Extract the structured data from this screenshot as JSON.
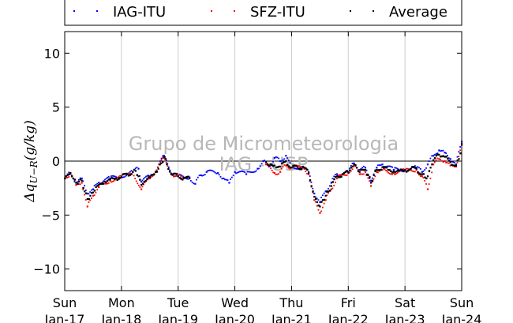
{
  "chart_data": {
    "type": "scatter",
    "watermark": [
      "Grupo de Micrometeorologia",
      "IAG - USP"
    ],
    "ylabel": "Δq_{U−R}(g/kg)",
    "ylabel_parts": {
      "delta": "Δ",
      "q": "q",
      "sub": "U−R",
      "unit": "(g/kg)"
    },
    "ylim": [
      -12,
      12
    ],
    "yticks": [
      10,
      5,
      0,
      -5,
      -10
    ],
    "ytick_labels": [
      "10",
      "5",
      "0",
      "−5",
      "−10"
    ],
    "xlim": [
      0,
      7
    ],
    "xticks": [
      0,
      1,
      2,
      3,
      4,
      5,
      6,
      7
    ],
    "xtick_labels": [
      {
        "day": "Sun",
        "date": "Jan-17"
      },
      {
        "day": "Mon",
        "date": "Jan-18"
      },
      {
        "day": "Tue",
        "date": "Jan-19"
      },
      {
        "day": "Wed",
        "date": "Jan-20"
      },
      {
        "day": "Thu",
        "date": "Jan-21"
      },
      {
        "day": "Fri",
        "date": "Jan-22"
      },
      {
        "day": "Sat",
        "date": "Jan-23"
      },
      {
        "day": "Sun",
        "date": "Jan-24"
      }
    ],
    "grid": "vertical",
    "legend_position": "top",
    "series": [
      {
        "name": "IAG-ITU",
        "color": "#0000ff",
        "points": [
          [
            0.0,
            -1.6
          ],
          [
            0.1,
            -1.1
          ],
          [
            0.2,
            -2.0
          ],
          [
            0.3,
            -1.6
          ],
          [
            0.4,
            -3.0
          ],
          [
            0.5,
            -2.6
          ],
          [
            0.6,
            -2.0
          ],
          [
            0.8,
            -1.6
          ],
          [
            1.0,
            -1.4
          ],
          [
            1.2,
            -1.0
          ],
          [
            1.3,
            -0.7
          ],
          [
            1.35,
            -1.9
          ],
          [
            1.5,
            -1.4
          ],
          [
            1.6,
            -1.0
          ],
          [
            1.75,
            0.5
          ],
          [
            1.9,
            -1.2
          ],
          [
            2.0,
            -1.4
          ],
          [
            2.2,
            -1.5
          ],
          [
            2.3,
            -2.1
          ],
          [
            2.4,
            -1.3
          ],
          [
            2.5,
            -1.0
          ],
          [
            2.7,
            -1.1
          ],
          [
            2.8,
            -1.6
          ],
          [
            2.9,
            -2.0
          ],
          [
            3.0,
            -1.0
          ],
          [
            3.2,
            -1.2
          ],
          [
            3.4,
            -0.7
          ],
          [
            3.5,
            0.0
          ],
          [
            3.6,
            -0.5
          ],
          [
            3.7,
            0.3
          ],
          [
            3.8,
            0.0
          ],
          [
            3.9,
            0.5
          ],
          [
            4.0,
            -0.6
          ],
          [
            4.2,
            -0.5
          ],
          [
            4.3,
            -1.0
          ],
          [
            4.4,
            -3.0
          ],
          [
            4.5,
            -3.8
          ],
          [
            4.6,
            -2.8
          ],
          [
            4.7,
            -2.0
          ],
          [
            4.8,
            -1.2
          ],
          [
            5.0,
            -1.0
          ],
          [
            5.1,
            -0.2
          ],
          [
            5.2,
            -0.8
          ],
          [
            5.3,
            -0.6
          ],
          [
            5.4,
            -1.8
          ],
          [
            5.5,
            -0.6
          ],
          [
            5.6,
            -0.3
          ],
          [
            5.8,
            -0.8
          ],
          [
            6.0,
            -0.8
          ],
          [
            6.2,
            -0.6
          ],
          [
            6.3,
            -1.0
          ],
          [
            6.4,
            -0.3
          ],
          [
            6.5,
            0.5
          ],
          [
            6.6,
            1.0
          ],
          [
            6.7,
            0.8
          ],
          [
            6.8,
            0.2
          ],
          [
            6.9,
            -0.3
          ],
          [
            7.0,
            1.8
          ]
        ]
      },
      {
        "name": "SFZ-ITU",
        "color": "#ff0000",
        "points": [
          [
            0.0,
            -1.6
          ],
          [
            0.1,
            -1.2
          ],
          [
            0.2,
            -2.2
          ],
          [
            0.3,
            -2.0
          ],
          [
            0.4,
            -4.2
          ],
          [
            0.5,
            -3.2
          ],
          [
            0.6,
            -2.4
          ],
          [
            0.8,
            -1.8
          ],
          [
            1.0,
            -1.5
          ],
          [
            1.2,
            -1.0
          ],
          [
            1.35,
            -2.6
          ],
          [
            1.5,
            -1.6
          ],
          [
            1.6,
            -1.0
          ],
          [
            1.75,
            0.3
          ],
          [
            1.9,
            -1.3
          ],
          [
            2.0,
            -1.4
          ],
          [
            2.1,
            -1.6
          ],
          [
            3.55,
            -0.3
          ],
          [
            3.7,
            -1.1
          ],
          [
            3.8,
            -1.0
          ],
          [
            3.9,
            -0.4
          ],
          [
            4.0,
            -0.6
          ],
          [
            4.2,
            -0.6
          ],
          [
            4.3,
            -1.2
          ],
          [
            4.4,
            -3.6
          ],
          [
            4.5,
            -4.8
          ],
          [
            4.6,
            -3.6
          ],
          [
            4.7,
            -2.6
          ],
          [
            4.8,
            -1.6
          ],
          [
            5.0,
            -1.1
          ],
          [
            5.1,
            -0.4
          ],
          [
            5.2,
            -1.2
          ],
          [
            5.3,
            -1.0
          ],
          [
            5.4,
            -2.3
          ],
          [
            5.5,
            -1.0
          ],
          [
            5.6,
            -0.8
          ],
          [
            5.8,
            -1.1
          ],
          [
            6.0,
            -0.9
          ],
          [
            6.2,
            -0.8
          ],
          [
            6.3,
            -1.4
          ],
          [
            6.4,
            -2.6
          ],
          [
            6.5,
            -0.3
          ],
          [
            6.6,
            0.2
          ],
          [
            6.7,
            0.0
          ],
          [
            6.8,
            -0.4
          ],
          [
            6.9,
            -0.5
          ],
          [
            7.0,
            1.5
          ]
        ]
      },
      {
        "name": "Average",
        "color": "#000000",
        "points": [
          [
            0.0,
            -1.6
          ],
          [
            0.05,
            -1.3
          ],
          [
            0.1,
            -1.1
          ],
          [
            0.15,
            -1.6
          ],
          [
            0.2,
            -2.0
          ],
          [
            0.25,
            -1.9
          ],
          [
            0.3,
            -1.8
          ],
          [
            0.35,
            -2.8
          ],
          [
            0.4,
            -3.5
          ],
          [
            0.45,
            -3.2
          ],
          [
            0.5,
            -2.9
          ],
          [
            0.55,
            -2.4
          ],
          [
            0.6,
            -2.2
          ],
          [
            0.7,
            -1.9
          ],
          [
            0.8,
            -1.7
          ],
          [
            0.9,
            -1.6
          ],
          [
            1.0,
            -1.45
          ],
          [
            1.1,
            -1.2
          ],
          [
            1.2,
            -1.0
          ],
          [
            1.25,
            -0.9
          ],
          [
            1.3,
            -1.4
          ],
          [
            1.35,
            -2.2
          ],
          [
            1.4,
            -1.9
          ],
          [
            1.5,
            -1.5
          ],
          [
            1.6,
            -1.0
          ],
          [
            1.65,
            -0.7
          ],
          [
            1.7,
            -0.2
          ],
          [
            1.75,
            0.4
          ],
          [
            1.8,
            -0.3
          ],
          [
            1.9,
            -1.25
          ],
          [
            2.0,
            -1.4
          ],
          [
            2.1,
            -1.55
          ],
          [
            2.2,
            -1.6
          ],
          [
            3.55,
            -0.1
          ],
          [
            3.6,
            -0.4
          ],
          [
            3.7,
            -0.4
          ],
          [
            3.8,
            -0.5
          ],
          [
            3.9,
            0.0
          ],
          [
            4.0,
            -0.6
          ],
          [
            4.1,
            -0.55
          ],
          [
            4.2,
            -0.55
          ],
          [
            4.3,
            -1.1
          ],
          [
            4.35,
            -2.3
          ],
          [
            4.4,
            -3.3
          ],
          [
            4.45,
            -3.8
          ],
          [
            4.5,
            -4.2
          ],
          [
            4.55,
            -3.6
          ],
          [
            4.6,
            -3.2
          ],
          [
            4.65,
            -2.8
          ],
          [
            4.7,
            -2.3
          ],
          [
            4.8,
            -1.4
          ],
          [
            4.9,
            -1.2
          ],
          [
            5.0,
            -1.05
          ],
          [
            5.05,
            -0.6
          ],
          [
            5.1,
            -0.3
          ],
          [
            5.15,
            -0.6
          ],
          [
            5.2,
            -1.0
          ],
          [
            5.3,
            -0.8
          ],
          [
            5.35,
            -1.3
          ],
          [
            5.4,
            -2.0
          ],
          [
            5.45,
            -1.3
          ],
          [
            5.5,
            -0.8
          ],
          [
            5.6,
            -0.55
          ],
          [
            5.7,
            -0.8
          ],
          [
            5.8,
            -0.95
          ],
          [
            5.9,
            -0.9
          ],
          [
            6.0,
            -0.85
          ],
          [
            6.1,
            -0.7
          ],
          [
            6.2,
            -0.7
          ],
          [
            6.3,
            -1.2
          ],
          [
            6.35,
            -1.5
          ],
          [
            6.4,
            -1.4
          ],
          [
            6.45,
            -0.6
          ],
          [
            6.5,
            0.1
          ],
          [
            6.55,
            0.5
          ],
          [
            6.6,
            0.6
          ],
          [
            6.7,
            0.4
          ],
          [
            6.8,
            -0.1
          ],
          [
            6.9,
            -0.4
          ],
          [
            6.95,
            0.2
          ],
          [
            7.0,
            1.6
          ]
        ]
      }
    ]
  }
}
